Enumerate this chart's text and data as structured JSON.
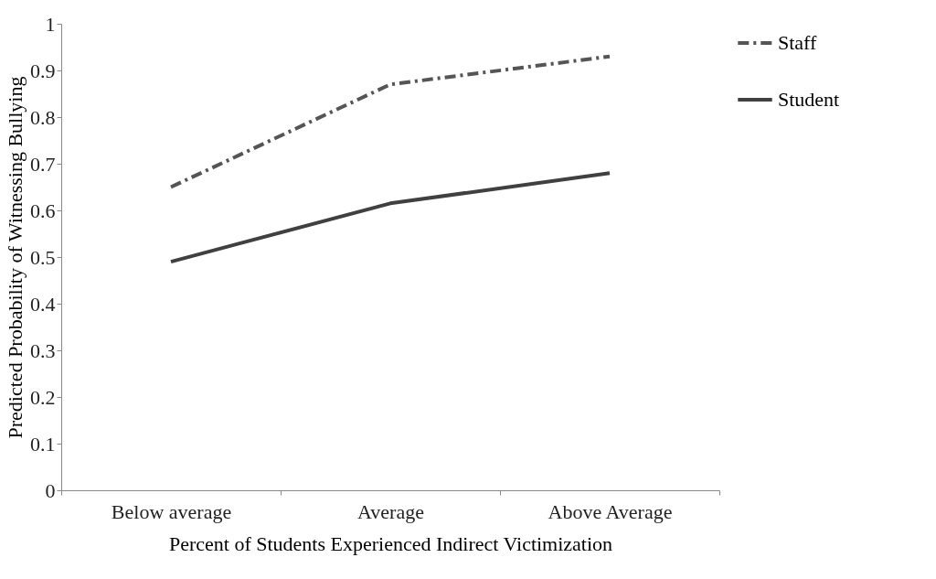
{
  "chart_data": {
    "type": "line",
    "xlabel": "Percent of Students Experienced Indirect Victimization",
    "ylabel": "Predicted Probability of Witnessing Bullying",
    "categories": [
      "Below average",
      "Average",
      "Above Average"
    ],
    "series": [
      {
        "name": "Staff",
        "color": "#555555",
        "line_style": "dashed",
        "values": [
          0.65,
          0.87,
          0.93
        ]
      },
      {
        "name": "Student",
        "color": "#404040",
        "line_style": "solid",
        "values": [
          0.49,
          0.615,
          0.68
        ]
      }
    ],
    "ylim": [
      0,
      1
    ],
    "yticks": [
      0,
      0.1,
      0.2,
      0.3,
      0.4,
      0.5,
      0.6,
      0.7,
      0.8,
      0.9,
      1
    ],
    "grid": false,
    "legend": "right",
    "marker": "none"
  }
}
